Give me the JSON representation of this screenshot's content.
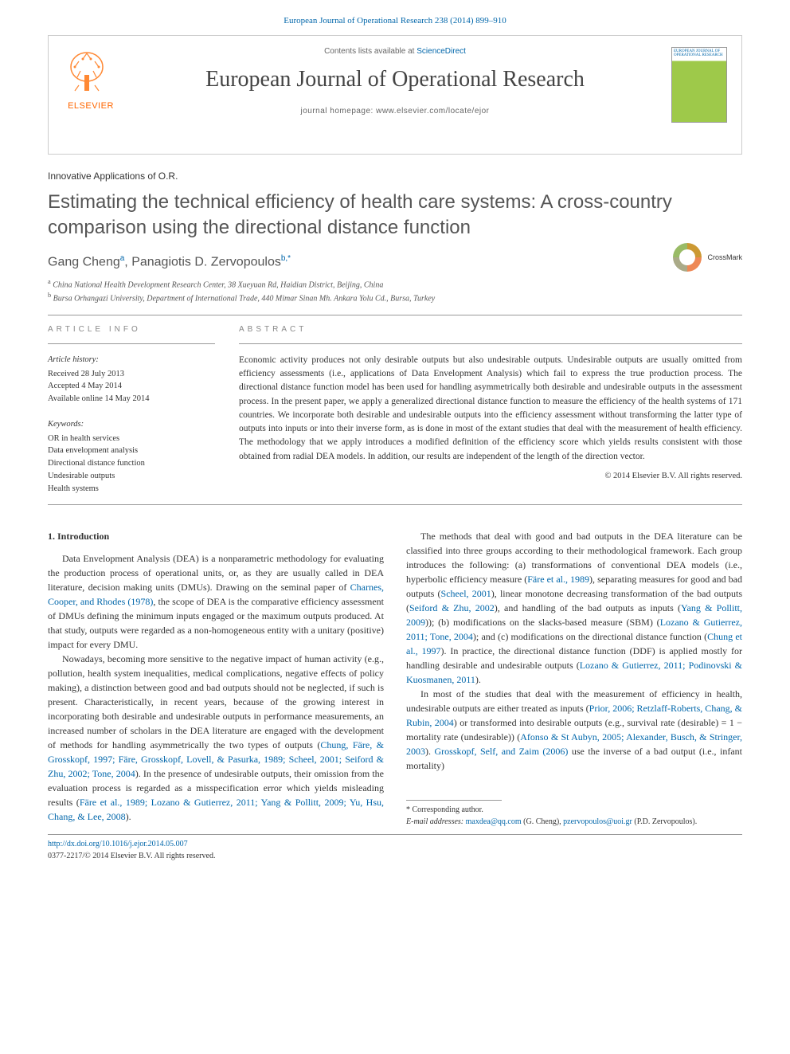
{
  "header": {
    "citation": "European Journal of Operational Research 238 (2014) 899–910"
  },
  "contentsBox": {
    "publisher": "ELSEVIER",
    "contentsLabel": "Contents lists available at ",
    "contentsLink": "ScienceDirect",
    "journalName": "European Journal of Operational Research",
    "homepageLabel": "journal homepage: www.elsevier.com/locate/ejor",
    "coverTitle": "EUROPEAN JOURNAL OF OPERATIONAL RESEARCH"
  },
  "article": {
    "sectionLabel": "Innovative Applications of O.R.",
    "title": "Estimating the technical efficiency of health care systems: A cross-country comparison using the directional distance function",
    "crossmark": "CrossMark",
    "authorsHtml": "Gang Cheng<sup>a</sup>, Panagiotis D. Zervopoulos<sup>b,*</sup>",
    "affiliations": {
      "a": "China National Health Development Research Center, 38 Xueyuan Rd, Haidian District, Beijing, China",
      "b": "Bursa Orhangazi University, Department of International Trade, 440 Mimar Sinan Mh. Ankara Yolu Cd., Bursa, Turkey"
    }
  },
  "meta": {
    "headingInfo": "ARTICLE INFO",
    "headingAbstract": "ABSTRACT",
    "historyLabel": "Article history:",
    "history": {
      "received": "Received 28 July 2013",
      "accepted": "Accepted 4 May 2014",
      "online": "Available online 14 May 2014"
    },
    "keywordsLabel": "Keywords:",
    "keywords": [
      "OR in health services",
      "Data envelopment analysis",
      "Directional distance function",
      "Undesirable outputs",
      "Health systems"
    ],
    "abstract": "Economic activity produces not only desirable outputs but also undesirable outputs. Undesirable outputs are usually omitted from efficiency assessments (i.e., applications of Data Envelopment Analysis) which fail to express the true production process. The directional distance function model has been used for handling asymmetrically both desirable and undesirable outputs in the assessment process. In the present paper, we apply a generalized directional distance function to measure the efficiency of the health systems of 171 countries. We incorporate both desirable and undesirable outputs into the efficiency assessment without transforming the latter type of outputs into inputs or into their inverse form, as is done in most of the extant studies that deal with the measurement of health efficiency. The methodology that we apply introduces a modified definition of the efficiency score which yields results consistent with those obtained from radial DEA models. In addition, our results are independent of the length of the direction vector.",
    "copyright": "© 2014 Elsevier B.V. All rights reserved."
  },
  "intro": {
    "heading": "1. Introduction",
    "p1a": "Data Envelopment Analysis (DEA) is a nonparametric methodology for evaluating the production process of operational units, or, as they are usually called in DEA literature, decision making units (DMUs). Drawing on the seminal paper of ",
    "c1": "Charnes, Cooper, and Rhodes (1978)",
    "p1b": ", the scope of DEA is the comparative efficiency assessment of DMUs defining the minimum inputs engaged or the maximum outputs produced. At that study, outputs were regarded as a non-homogeneous entity with a unitary (positive) impact for every DMU.",
    "p2a": "Nowadays, becoming more sensitive to the negative impact of human activity (e.g., pollution, health system inequalities, medical complications, negative effects of policy making), a distinction between good and bad outputs should not be neglected, if such is present. Characteristically, in recent years, because of the growing interest in incorporating both desirable and undesirable outputs in performance measurements, an increased number of scholars in the DEA literature are engaged with the development of methods for handling asymmetrically the two types of outputs (",
    "c2": "Chung, Färe, & Grosskopf, 1997; Färe, Grosskopf, Lovell, & Pasurka, 1989; Scheel, 2001; Seiford & Zhu, 2002; Tone, 2004",
    "p2b": "). In the presence of undesirable outputs, their omission from the evaluation process is regarded as a misspecification error which yields misleading results (",
    "c3": "Färe et al., 1989; Lozano & Gutierrez, 2011; Yang & Pollitt, 2009; Yu, Hsu, Chang, & Lee, 2008",
    "p2c": ").",
    "p3a": "The methods that deal with good and bad outputs in the DEA literature can be classified into three groups according to their methodological framework. Each group introduces the following: (a) transformations of conventional DEA models (i.e., hyperbolic efficiency measure (",
    "c4": "Färe et al., 1989",
    "p3b": "), separating measures for good and bad outputs (",
    "c5": "Scheel, 2001",
    "p3c": "), linear monotone decreasing transformation of the bad outputs (",
    "c6": "Seiford & Zhu, 2002",
    "p3d": "), and handling of the bad outputs as inputs (",
    "c7": "Yang & Pollitt, 2009",
    "p3e": ")); (b) modifications on the slacks-based measure (SBM) (",
    "c8": "Lozano & Gutierrez, 2011; Tone, 2004",
    "p3f": "); and (c) modifications on the directional distance function (",
    "c9": "Chung et al., 1997",
    "p3g": "). In practice, the directional distance function (DDF) is applied mostly for handling desirable and undesirable outputs (",
    "c10": "Lozano & Gutierrez, 2011; Podinovski & Kuosmanen, 2011",
    "p3h": ").",
    "p4a": "In most of the studies that deal with the measurement of efficiency in health, undesirable outputs are either treated as inputs (",
    "c11": "Prior, 2006; Retzlaff-Roberts, Chang, & Rubin, 2004",
    "p4b": ") or transformed into desirable outputs (e.g., survival rate (desirable) = 1 − mortality rate (undesirable)) (",
    "c12": "Afonso & St Aubyn, 2005; Alexander, Busch, & Stringer, 2003",
    "p4c": "). ",
    "c13": "Grosskopf, Self, and Zaim (2006)",
    "p4d": " use the inverse of a bad output (i.e., infant mortality)"
  },
  "footer": {
    "corresponding": "* Corresponding author.",
    "emailLabel": "E-mail addresses:",
    "email1": "maxdea@qq.com",
    "email1who": "(G. Cheng),",
    "email2": "pzervopoulos@uoi.gr",
    "email2who": "(P.D. Zervopoulos).",
    "doi": "http://dx.doi.org/10.1016/j.ejor.2014.05.007",
    "issn": "0377-2217/© 2014 Elsevier B.V. All rights reserved."
  }
}
